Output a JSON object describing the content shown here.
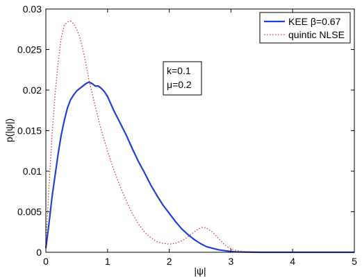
{
  "chart_data": {
    "type": "line",
    "xlabel": "|ψ|",
    "ylabel": "p(|ψ|)",
    "xlim": [
      0,
      5
    ],
    "ylim": [
      0,
      0.03
    ],
    "x_ticks": [
      "0",
      "1",
      "2",
      "3",
      "4",
      "5"
    ],
    "y_ticks": [
      "0",
      "0.005",
      "0.01",
      "0.015",
      "0.02",
      "0.025",
      "0.03"
    ],
    "grid": false,
    "legend_position": "top-right",
    "annotation": [
      "k=0.1",
      "μ=0.2"
    ],
    "series": [
      {
        "name": "KEE β=0.67",
        "style": "solid",
        "color": "#1f3fd8",
        "x": [
          0.0,
          0.05,
          0.1,
          0.15,
          0.2,
          0.25,
          0.3,
          0.35,
          0.4,
          0.45,
          0.5,
          0.55,
          0.6,
          0.65,
          0.7,
          0.75,
          0.8,
          0.85,
          0.9,
          0.95,
          1.0,
          1.1,
          1.2,
          1.3,
          1.4,
          1.5,
          1.6,
          1.7,
          1.8,
          1.9,
          2.0,
          2.1,
          2.2,
          2.3,
          2.4,
          2.5,
          2.6,
          2.7,
          2.8,
          2.9,
          3.0,
          3.1,
          3.2,
          3.5,
          4.0,
          4.5,
          5.0
        ],
        "y": [
          0.0005,
          0.0035,
          0.0068,
          0.0095,
          0.0122,
          0.0145,
          0.0163,
          0.0178,
          0.0188,
          0.0194,
          0.0199,
          0.0202,
          0.0205,
          0.0208,
          0.021,
          0.0208,
          0.0205,
          0.0205,
          0.0202,
          0.0198,
          0.0192,
          0.0175,
          0.016,
          0.0145,
          0.0128,
          0.0112,
          0.0098,
          0.0083,
          0.007,
          0.0058,
          0.0048,
          0.0038,
          0.0029,
          0.0022,
          0.0016,
          0.0011,
          0.0007,
          0.0005,
          0.0003,
          0.0002,
          0.0001,
          5e-05,
          3e-05,
          0.0,
          0.0,
          0.0,
          0.0
        ]
      },
      {
        "name": "quintic NLSE",
        "style": "dotted",
        "color": "#e03030",
        "x": [
          0.0,
          0.05,
          0.1,
          0.15,
          0.2,
          0.25,
          0.3,
          0.35,
          0.4,
          0.45,
          0.5,
          0.55,
          0.6,
          0.65,
          0.7,
          0.8,
          0.9,
          1.0,
          1.1,
          1.2,
          1.3,
          1.4,
          1.5,
          1.6,
          1.7,
          1.8,
          1.9,
          2.0,
          2.1,
          2.2,
          2.3,
          2.4,
          2.5,
          2.55,
          2.6,
          2.7,
          2.8,
          2.9,
          3.0,
          3.1,
          3.2,
          3.5,
          4.0,
          5.0
        ],
        "y": [
          0.001,
          0.008,
          0.0145,
          0.0195,
          0.0235,
          0.0265,
          0.028,
          0.0284,
          0.0285,
          0.0282,
          0.0275,
          0.0265,
          0.025,
          0.0232,
          0.0212,
          0.018,
          0.015,
          0.0125,
          0.0102,
          0.0082,
          0.0064,
          0.0048,
          0.0035,
          0.0025,
          0.0018,
          0.0013,
          0.0011,
          0.001,
          0.0011,
          0.0014,
          0.0019,
          0.0025,
          0.003,
          0.0031,
          0.003,
          0.0025,
          0.0017,
          0.0009,
          0.0004,
          0.0002,
          0.0001,
          0.0,
          0.0,
          0.0
        ]
      }
    ]
  }
}
